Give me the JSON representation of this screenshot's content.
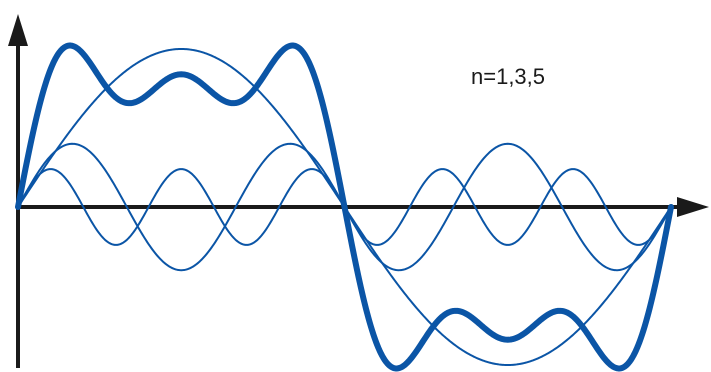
{
  "annotation": {
    "text": "n=1,3,5"
  },
  "colors": {
    "curve": "#0b55a6",
    "axis": "#1a1a1a",
    "background": "#ffffff"
  },
  "waves": {
    "harmonics": [
      1,
      3,
      5
    ],
    "harmonic_amplitudes": [
      1.0,
      0.4,
      0.24
    ],
    "sum_of_harmonics": [
      1,
      3,
      5
    ],
    "periods_shown": 1
  }
}
